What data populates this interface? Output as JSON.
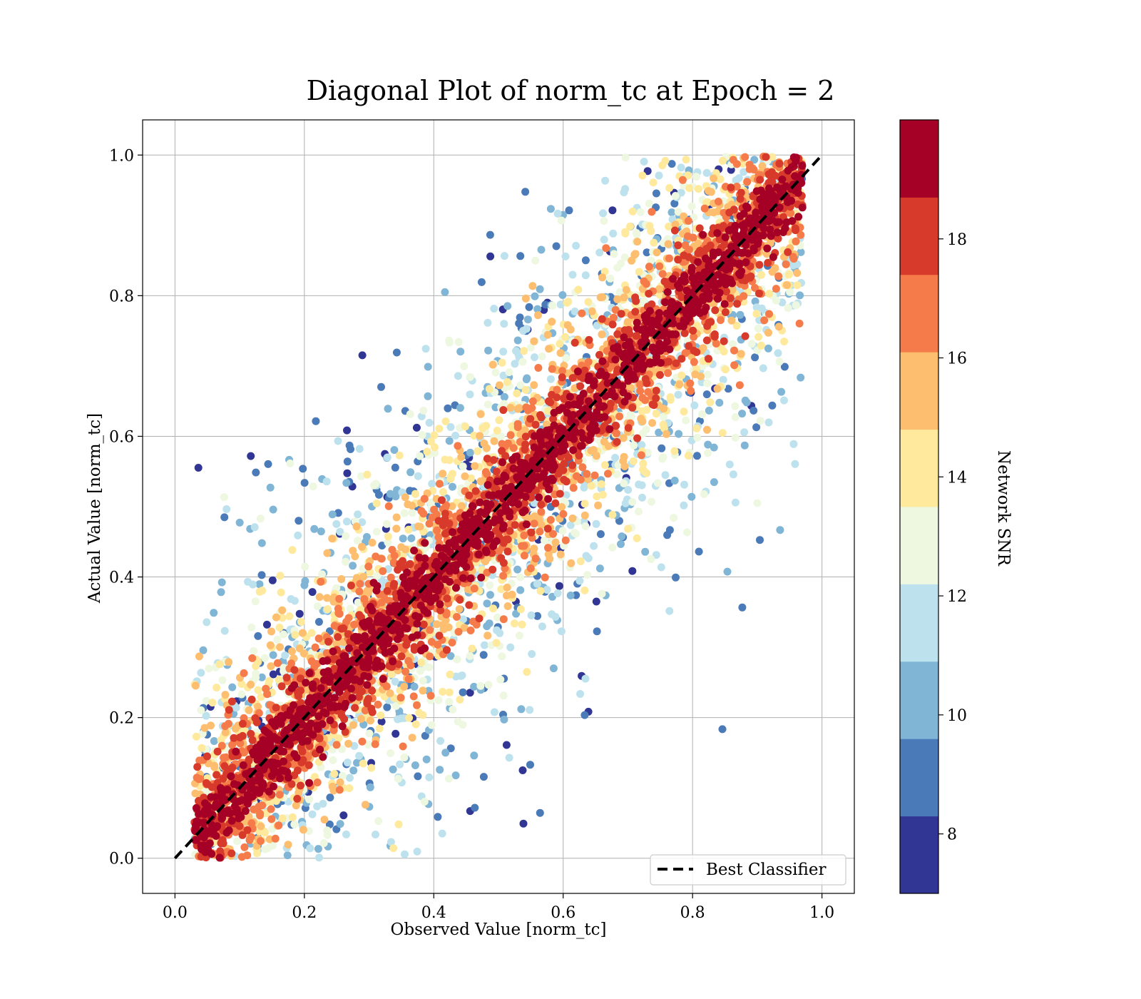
{
  "chart_data": {
    "type": "scatter",
    "title": "Diagonal Plot of norm_tc at Epoch = 2",
    "xlabel": "Observed Value [norm_tc]",
    "ylabel": "Actual Value [norm_tc]",
    "xlim": [
      -0.05,
      1.05
    ],
    "ylim": [
      -0.05,
      1.05
    ],
    "xticks": [
      "0.0",
      "0.2",
      "0.4",
      "0.6",
      "0.8",
      "1.0"
    ],
    "yticks": [
      "0.0",
      "0.2",
      "0.4",
      "0.6",
      "0.8",
      "1.0"
    ],
    "grid": true,
    "reference_line": {
      "label": "Best Classifier",
      "x": [
        0.0,
        1.0
      ],
      "y": [
        0.0,
        1.0
      ],
      "style": "dashed",
      "color": "#000000"
    },
    "legend": {
      "position": "lower-right",
      "entries": [
        "Best Classifier"
      ]
    },
    "point_distribution": {
      "description_of_data": "dense points along y = x, high-SNR near diagonal, low-SNR scattered farther away",
      "x_range": [
        0.03,
        0.97
      ],
      "y_range": [
        0.0,
        1.0
      ],
      "high_snr_band_halfwidth": 0.12,
      "approx_max_deviation": 0.5
    },
    "colorbar": {
      "label": "Network SNR",
      "range": [
        7,
        20
      ],
      "ticks": [
        "8",
        "10",
        "12",
        "14",
        "16",
        "18"
      ],
      "tick_values": [
        8,
        10,
        12,
        14,
        16,
        18
      ],
      "levels": [
        7,
        8.3,
        9.6,
        10.9,
        12.2,
        13.5,
        14.8,
        16.1,
        17.4,
        18.7,
        20
      ],
      "colors": [
        "#313695",
        "#4a7ab7",
        "#80b5d6",
        "#bde2ee",
        "#eef7e0",
        "#fee99d",
        "#fdbe6f",
        "#f57c4a",
        "#d73a2b",
        "#a50026"
      ]
    }
  }
}
